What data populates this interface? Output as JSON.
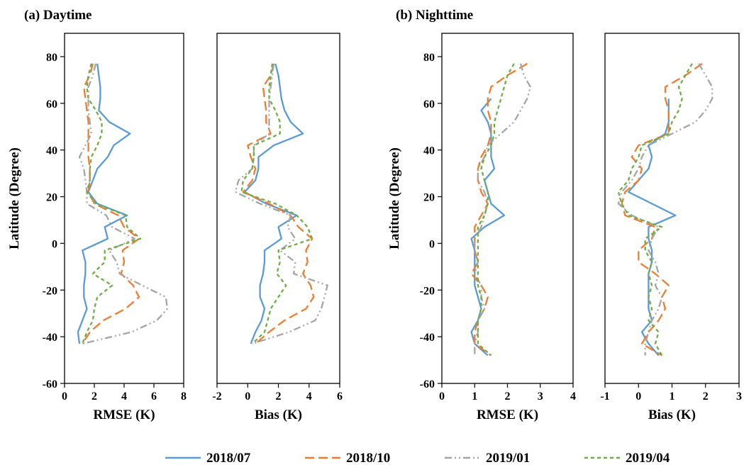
{
  "figure": {
    "panel_titles": [
      "(a) Daytime",
      "(b) Nighttime"
    ],
    "ylabel": "Latitude (Degree)"
  },
  "legend": [
    {
      "name": "2018/07",
      "color": "#5b9bd5",
      "dash": "solid"
    },
    {
      "name": "2018/10",
      "color": "#ed7d31",
      "dash": "long-dash"
    },
    {
      "name": "2019/01",
      "color": "#a5a5a5",
      "dash": "dash-dot-dot"
    },
    {
      "name": "2019/04",
      "color": "#70ad47",
      "dash": "short-dash"
    }
  ],
  "chart_data": [
    {
      "type": "line",
      "panel": "(a) Daytime",
      "xlabel": "RMSE (K)",
      "xlim": [
        0,
        8
      ],
      "xticks": [
        0,
        2,
        4,
        6,
        8
      ],
      "ylim": [
        -60,
        90
      ],
      "yticks": [
        -60,
        -40,
        -20,
        0,
        20,
        40,
        60,
        80
      ],
      "series": [
        {
          "name": "2018/07",
          "lat": [
            77,
            72,
            67,
            62,
            57,
            52,
            47,
            42,
            37,
            32,
            27,
            22,
            17,
            12,
            7,
            2,
            -3,
            -8,
            -13,
            -18,
            -23,
            -28,
            -33,
            -38,
            -43
          ],
          "values": [
            2.2,
            2.3,
            2.4,
            2.4,
            2.3,
            3.0,
            4.4,
            3.3,
            2.9,
            2.2,
            1.9,
            1.6,
            2.2,
            4.2,
            2.7,
            2.9,
            1.2,
            1.4,
            1.4,
            1.3,
            1.3,
            1.5,
            1.2,
            0.9,
            1.0
          ]
        },
        {
          "name": "2018/10",
          "lat": [
            77,
            72,
            67,
            62,
            57,
            52,
            47,
            42,
            37,
            32,
            27,
            22,
            17,
            12,
            7,
            2,
            -3,
            -8,
            -13,
            -18,
            -23,
            -28,
            -33,
            -38,
            -43
          ],
          "values": [
            1.9,
            1.7,
            1.3,
            1.4,
            1.5,
            1.6,
            1.6,
            1.6,
            1.6,
            1.7,
            1.7,
            1.6,
            2.0,
            3.6,
            4.0,
            5.0,
            3.9,
            4.0,
            3.8,
            4.6,
            5.0,
            4.1,
            2.6,
            1.7,
            1.2
          ]
        },
        {
          "name": "2019/01",
          "lat": [
            77,
            72,
            67,
            62,
            57,
            52,
            47,
            42,
            37,
            32,
            27,
            22,
            17,
            12,
            7,
            2,
            -3,
            -8,
            -13,
            -18,
            -23,
            -28,
            -33,
            -38,
            -43
          ],
          "values": [
            2.1,
            1.9,
            1.6,
            1.6,
            1.6,
            1.7,
            1.8,
            1.4,
            1.0,
            1.3,
            1.4,
            1.5,
            1.5,
            2.8,
            3.2,
            4.7,
            3.0,
            3.5,
            3.7,
            5.2,
            6.8,
            6.9,
            6.2,
            4.5,
            1.2
          ]
        },
        {
          "name": "2019/04",
          "lat": [
            77,
            72,
            67,
            62,
            57,
            52,
            47,
            42,
            37,
            32,
            27,
            22,
            17,
            12,
            7,
            2,
            -3,
            -8,
            -13,
            -18,
            -23,
            -28,
            -33,
            -38,
            -43
          ],
          "values": [
            1.8,
            1.6,
            1.5,
            1.6,
            2.1,
            2.5,
            2.5,
            2.2,
            1.8,
            1.7,
            1.7,
            1.5,
            2.1,
            4.1,
            4.2,
            5.1,
            2.7,
            2.7,
            1.9,
            3.2,
            2.2,
            2.0,
            1.9,
            1.5,
            1.2
          ]
        }
      ]
    },
    {
      "type": "line",
      "panel": "(a) Daytime",
      "xlabel": "Bias (K)",
      "xlim": [
        -2,
        6
      ],
      "xticks": [
        -2,
        0,
        2,
        4,
        6
      ],
      "ylim": [
        -60,
        90
      ],
      "yticks": [
        -60,
        -40,
        -20,
        0,
        20,
        40,
        60,
        80
      ],
      "series": [
        {
          "name": "2018/07",
          "lat": [
            77,
            72,
            67,
            62,
            57,
            52,
            47,
            42,
            37,
            32,
            27,
            22,
            17,
            12,
            7,
            2,
            -3,
            -8,
            -13,
            -18,
            -23,
            -28,
            -33,
            -38,
            -43
          ],
          "values": [
            1.8,
            2.0,
            2.1,
            2.2,
            2.4,
            2.8,
            3.6,
            1.7,
            0.7,
            0.7,
            0.5,
            -0.2,
            1.2,
            3.2,
            2.0,
            2.2,
            1.1,
            1.1,
            1.0,
            0.8,
            0.8,
            1.1,
            0.9,
            0.5,
            0.2
          ]
        },
        {
          "name": "2018/10",
          "lat": [
            77,
            72,
            67,
            62,
            57,
            52,
            47,
            42,
            37,
            32,
            27,
            22,
            17,
            12,
            7,
            2,
            -3,
            -8,
            -13,
            -18,
            -23,
            -28,
            -33,
            -38,
            -43
          ],
          "values": [
            1.7,
            1.5,
            1.0,
            1.1,
            1.2,
            1.2,
            1.5,
            0.0,
            0.2,
            0.5,
            0.3,
            -0.3,
            1.4,
            2.8,
            3.3,
            4.2,
            3.8,
            3.9,
            3.6,
            4.1,
            4.3,
            3.8,
            2.4,
            1.4,
            0.5
          ]
        },
        {
          "name": "2019/01",
          "lat": [
            77,
            72,
            67,
            62,
            57,
            52,
            47,
            42,
            37,
            32,
            27,
            22,
            17,
            12,
            7,
            2,
            -3,
            -8,
            -13,
            -18,
            -23,
            -28,
            -33,
            -38,
            -43
          ],
          "values": [
            1.7,
            1.6,
            1.5,
            1.4,
            1.4,
            1.4,
            1.4,
            0.4,
            0.4,
            0.3,
            -0.6,
            -0.8,
            0.8,
            2.8,
            2.6,
            3.1,
            2.1,
            3.1,
            3.0,
            5.2,
            5.0,
            4.8,
            4.4,
            2.7,
            0.3
          ]
        },
        {
          "name": "2019/04",
          "lat": [
            77,
            72,
            67,
            62,
            57,
            52,
            47,
            42,
            37,
            32,
            27,
            22,
            17,
            12,
            7,
            2,
            -3,
            -8,
            -13,
            -18,
            -23,
            -28,
            -33,
            -38,
            -43
          ],
          "values": [
            1.6,
            1.5,
            1.4,
            1.4,
            1.8,
            2.1,
            2.1,
            0.4,
            0.4,
            0.3,
            -0.3,
            -0.4,
            1.8,
            3.2,
            3.9,
            4.2,
            2.0,
            2.1,
            1.9,
            2.5,
            2.0,
            1.5,
            1.3,
            1.1,
            0.3
          ]
        }
      ]
    },
    {
      "type": "line",
      "panel": "(b) Nighttime",
      "xlabel": "RMSE (K)",
      "xlim": [
        0,
        4
      ],
      "xticks": [
        0,
        1,
        2,
        3,
        4
      ],
      "ylim": [
        -60,
        90
      ],
      "yticks": [
        -60,
        -40,
        -20,
        0,
        20,
        40,
        60,
        80
      ],
      "series": [
        {
          "name": "2018/07",
          "lat": [
            62,
            57,
            52,
            47,
            42,
            37,
            32,
            27,
            22,
            17,
            12,
            7,
            2,
            -3,
            -8,
            -13,
            -18,
            -23,
            -28,
            -33,
            -38,
            -43,
            -48
          ],
          "values": [
            1.5,
            1.2,
            1.4,
            1.5,
            1.5,
            1.5,
            1.6,
            1.3,
            1.4,
            1.5,
            1.9,
            1.3,
            0.9,
            1.0,
            1.0,
            1.0,
            1.0,
            1.1,
            1.2,
            1.1,
            0.9,
            1.0,
            1.4
          ]
        },
        {
          "name": "2018/10",
          "lat": [
            77,
            72,
            67,
            62,
            57,
            52,
            47,
            42,
            37,
            32,
            27,
            22,
            17,
            12,
            7,
            2,
            -3,
            -8,
            -13,
            -18,
            -23,
            -28,
            -33,
            -38,
            -43,
            -48
          ],
          "values": [
            2.6,
            2.0,
            1.5,
            1.4,
            1.4,
            1.5,
            1.5,
            1.4,
            1.2,
            1.1,
            1.1,
            1.2,
            1.4,
            1.2,
            1.0,
            1.0,
            1.0,
            1.1,
            0.9,
            1.2,
            1.4,
            1.3,
            1.1,
            1.0,
            1.0,
            1.5
          ]
        },
        {
          "name": "2019/01",
          "lat": [
            77,
            72,
            67,
            62,
            57,
            52,
            47,
            42,
            37,
            32,
            27,
            22,
            17,
            12,
            7,
            2,
            -3,
            -8,
            -13,
            -18,
            -23,
            -28,
            -33,
            -38,
            -43,
            -48
          ],
          "values": [
            2.4,
            2.5,
            2.7,
            2.6,
            2.4,
            2.2,
            1.8,
            1.4,
            1.3,
            1.1,
            1.1,
            1.3,
            1.4,
            1.3,
            1.2,
            1.0,
            1.0,
            1.1,
            1.0,
            1.2,
            1.2,
            1.3,
            1.1,
            1.1,
            1.0,
            1.0
          ]
        },
        {
          "name": "2019/04",
          "lat": [
            77,
            72,
            67,
            62,
            57,
            52,
            47,
            42,
            37,
            32,
            27,
            22,
            17,
            12,
            7,
            2,
            -3,
            -8,
            -13,
            -18,
            -23,
            -28,
            -33,
            -38,
            -43,
            -48
          ],
          "values": [
            2.2,
            2.0,
            1.9,
            1.8,
            1.7,
            1.6,
            1.6,
            1.5,
            1.3,
            1.2,
            1.3,
            1.4,
            1.4,
            1.3,
            1.1,
            1.1,
            1.1,
            1.1,
            1.1,
            1.1,
            1.2,
            1.2,
            1.1,
            1.1,
            1.1,
            1.5
          ]
        }
      ]
    },
    {
      "type": "line",
      "panel": "(b) Nighttime",
      "xlabel": "Bias (K)",
      "xlim": [
        -1,
        3
      ],
      "xticks": [
        -1,
        0,
        1,
        2,
        3
      ],
      "ylim": [
        -60,
        90
      ],
      "yticks": [
        -60,
        -40,
        -20,
        0,
        20,
        40,
        60,
        80
      ],
      "series": [
        {
          "name": "2018/07",
          "lat": [
            62,
            57,
            52,
            47,
            42,
            37,
            32,
            27,
            22,
            17,
            12,
            7,
            2,
            -3,
            -8,
            -13,
            -18,
            -23,
            -28,
            -33,
            -38,
            -43,
            -48
          ],
          "values": [
            0.9,
            0.9,
            0.9,
            0.8,
            0.3,
            0.4,
            0.3,
            0.0,
            -0.3,
            0.4,
            1.1,
            0.3,
            0.3,
            0.4,
            0.4,
            0.3,
            0.3,
            0.3,
            0.3,
            0.4,
            0.1,
            0.3,
            0.6
          ]
        },
        {
          "name": "2018/10",
          "lat": [
            77,
            72,
            67,
            62,
            57,
            52,
            47,
            42,
            37,
            32,
            27,
            22,
            17,
            12,
            7,
            2,
            -3,
            -8,
            -13,
            -18,
            -23,
            -28,
            -33,
            -38,
            -43,
            -48
          ],
          "values": [
            1.9,
            1.4,
            0.8,
            0.8,
            0.9,
            0.9,
            0.9,
            0.0,
            -0.2,
            0.1,
            0.0,
            -0.4,
            -0.5,
            -0.4,
            0.5,
            0.4,
            0.0,
            0.0,
            0.5,
            0.9,
            0.7,
            0.8,
            0.6,
            0.3,
            0.1,
            0.7
          ]
        },
        {
          "name": "2019/01",
          "lat": [
            77,
            72,
            67,
            62,
            57,
            52,
            47,
            42,
            37,
            32,
            27,
            22,
            17,
            12,
            7,
            2,
            -3,
            -8,
            -13,
            -18,
            -23,
            -28,
            -33,
            -38,
            -43,
            -48
          ],
          "values": [
            1.8,
            2.0,
            2.2,
            2.2,
            2.0,
            1.7,
            1.0,
            0.3,
            0.1,
            0.0,
            -0.2,
            -0.5,
            -0.6,
            -0.2,
            0.6,
            0.4,
            0.3,
            0.5,
            0.6,
            0.5,
            0.7,
            0.6,
            0.4,
            0.3,
            0.2,
            0.2
          ]
        },
        {
          "name": "2019/04",
          "lat": [
            77,
            72,
            67,
            62,
            57,
            52,
            47,
            42,
            37,
            32,
            27,
            22,
            17,
            12,
            7,
            2,
            -3,
            -8,
            -13,
            -18,
            -23,
            -28,
            -33,
            -38,
            -43,
            -48
          ],
          "values": [
            1.6,
            1.4,
            1.2,
            1.3,
            1.2,
            1.0,
            0.9,
            0.1,
            0.0,
            -0.2,
            -0.3,
            -0.6,
            -0.5,
            -0.3,
            0.7,
            0.2,
            0.2,
            0.4,
            0.3,
            0.4,
            0.3,
            0.4,
            0.3,
            0.6,
            0.5,
            0.7
          ]
        }
      ]
    }
  ]
}
